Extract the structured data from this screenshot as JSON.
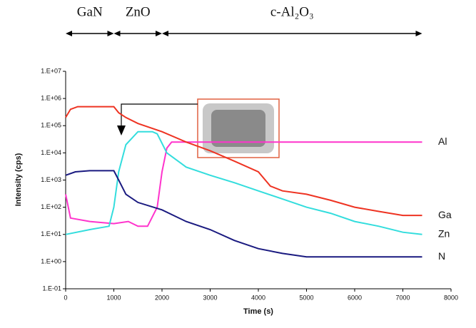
{
  "chart_data": {
    "type": "line",
    "log_y": true,
    "x_label": "Time (s)",
    "y_label": "Intensity (cps)",
    "xlim": [
      0,
      8000
    ],
    "xticks": [
      0,
      1000,
      2000,
      3000,
      4000,
      5000,
      6000,
      7000,
      8000
    ],
    "ylim": [
      0.1,
      10000000
    ],
    "yticks": [
      {
        "value": 0.1,
        "label": "1.E-01"
      },
      {
        "value": 1,
        "label": "1.E+00"
      },
      {
        "value": 10,
        "label": "1.E+01"
      },
      {
        "value": 100,
        "label": "1.E+02"
      },
      {
        "value": 1000,
        "label": "1.E+03"
      },
      {
        "value": 10000,
        "label": "1.E+04"
      },
      {
        "value": 100000,
        "label": "1.E+05"
      },
      {
        "value": 1000000,
        "label": "1.E+06"
      },
      {
        "value": 10000000,
        "label": "1.E+07"
      }
    ],
    "regions": [
      {
        "label": "GaN",
        "from": 0,
        "to": 1000
      },
      {
        "label": "ZnO",
        "from": 1000,
        "to": 2000
      },
      {
        "label": "c-Al₂O₃",
        "from": 2000,
        "to": 7400
      }
    ],
    "series": [
      {
        "name": "Al",
        "color": "#ff33cc",
        "x": [
          0,
          100,
          500,
          1000,
          1300,
          1500,
          1700,
          1900,
          2000,
          2100,
          2200,
          3000,
          5000,
          7400
        ],
        "values": [
          300,
          40,
          30,
          25,
          30,
          20,
          20,
          100,
          2000,
          15000,
          25000,
          25000,
          25000,
          25000
        ]
      },
      {
        "name": "Ga",
        "color": "#ee3322",
        "x": [
          0,
          100,
          250,
          500,
          1000,
          1100,
          1250,
          1500,
          2000,
          2500,
          3000,
          3500,
          4000,
          4250,
          4500,
          5000,
          5500,
          6000,
          6500,
          7000,
          7400
        ],
        "values": [
          200000,
          400000,
          500000,
          500000,
          500000,
          300000,
          200000,
          120000,
          60000,
          25000,
          12000,
          5000,
          2000,
          600,
          400,
          300,
          180,
          100,
          70,
          50,
          50
        ]
      },
      {
        "name": "Zn",
        "color": "#33dddd",
        "x": [
          0,
          500,
          900,
          1000,
          1100,
          1250,
          1500,
          1800,
          1900,
          2100,
          2500,
          3000,
          3500,
          4000,
          4500,
          5000,
          5500,
          6000,
          6500,
          7000,
          7400
        ],
        "values": [
          10,
          15,
          20,
          100,
          2000,
          20000,
          60000,
          60000,
          50000,
          10000,
          3000,
          1500,
          800,
          400,
          200,
          100,
          60,
          30,
          20,
          12,
          10
        ]
      },
      {
        "name": "N",
        "color": "#1a1a80",
        "x": [
          0,
          200,
          500,
          1000,
          1100,
          1250,
          1500,
          2000,
          2500,
          3000,
          3500,
          4000,
          4500,
          5000,
          6000,
          7000,
          7400
        ],
        "values": [
          1500,
          2000,
          2200,
          2200,
          1000,
          300,
          150,
          80,
          30,
          15,
          6,
          3,
          2,
          1.5,
          1.5,
          1.5,
          1.5
        ]
      }
    ]
  }
}
